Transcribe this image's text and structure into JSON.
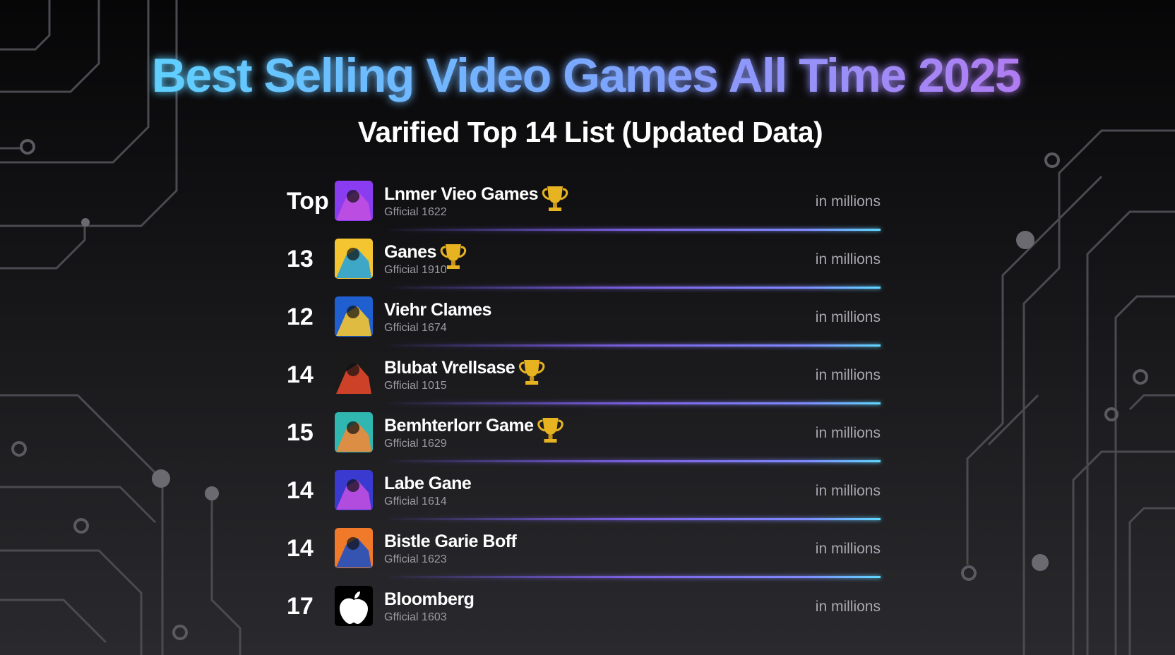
{
  "header": {
    "title": "Best Selling Video Games All Time 2025",
    "subtitle": "Varified Top 14 List (Updated Data)"
  },
  "list": {
    "rows": [
      {
        "rank": "Top",
        "name": "Lnmer Vieo Games",
        "source": "Gfficial 1622",
        "unit": "in millions",
        "trophy": true
      },
      {
        "rank": "13",
        "name": "Ganes",
        "source": "Gfficial 1910",
        "unit": "in millions",
        "trophy": true
      },
      {
        "rank": "12",
        "name": "Viehr Clames",
        "source": "Gfficial 1674",
        "unit": "in millions",
        "trophy": false
      },
      {
        "rank": "14",
        "name": "Blubat Vrellsase",
        "source": "Gfficial 1015",
        "unit": "in millions",
        "trophy": true
      },
      {
        "rank": "15",
        "name": "Bemhterlorr Game",
        "source": "Gfficial 1629",
        "unit": "in millions",
        "trophy": true
      },
      {
        "rank": "14",
        "name": "Labe Gane",
        "source": "Gfficial 1614",
        "unit": "in millions",
        "trophy": false
      },
      {
        "rank": "14",
        "name": "Bistle Garie Boff",
        "source": "Gfficial 1623",
        "unit": "in millions",
        "trophy": false
      },
      {
        "rank": "17",
        "name": "Bloomberg",
        "source": "Gfficial 1603",
        "unit": "in millions",
        "trophy": false
      }
    ]
  }
}
